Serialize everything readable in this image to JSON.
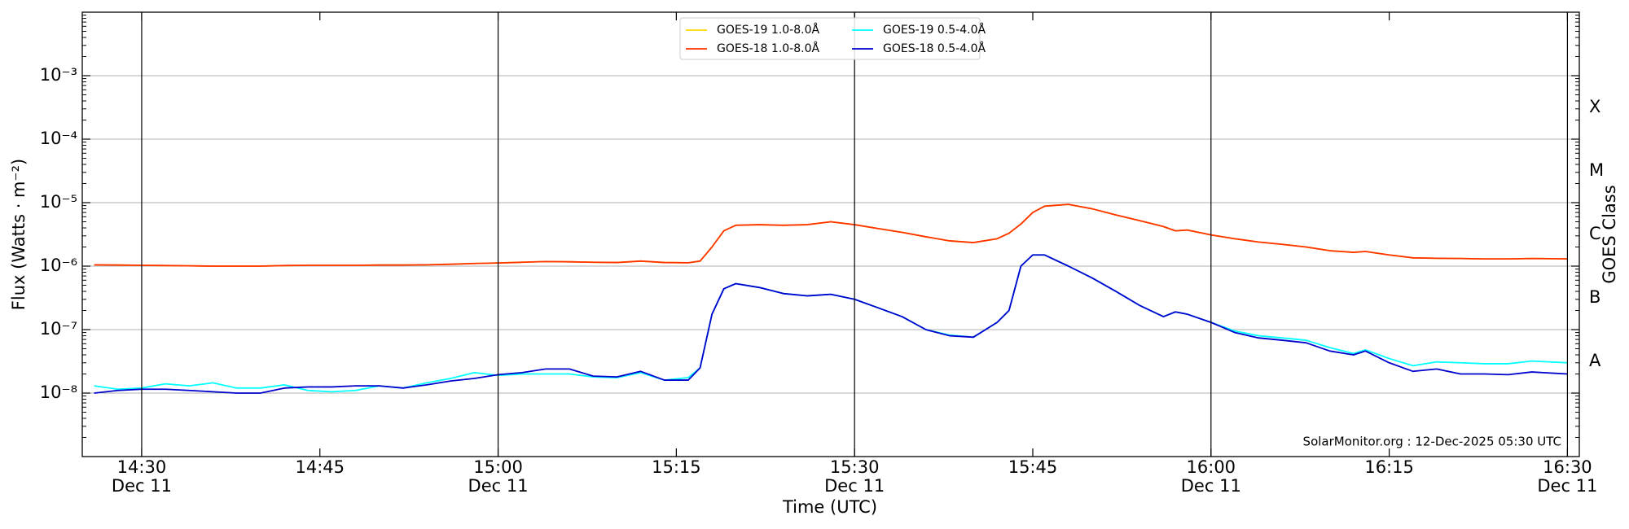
{
  "chart_data": {
    "type": "line",
    "ylabel": "Flux (Watts · m⁻²)",
    "xlabel": "Time (UTC)",
    "y2label": "GOES Class",
    "annotation": "SolarMonitor.org : 12-Dec-2025 05:30 UTC",
    "legend": "upper center",
    "grid": true,
    "ylog": true,
    "y2log": true,
    "xlim": [
      "14:25",
      "16:31"
    ],
    "ylim": [
      1e-09,
      0.01
    ],
    "y2lim": [
      1e-09,
      0.01
    ],
    "xticks": [
      {
        "value": "14:30",
        "label": [
          "14:30",
          "Dec 11"
        ]
      },
      "14:45",
      {
        "value": "15:00",
        "label": [
          "15:00",
          "Dec 11"
        ]
      },
      "15:15",
      {
        "value": "15:30",
        "label": [
          "15:30",
          "Dec 11"
        ]
      },
      "15:45",
      {
        "value": "16:00",
        "label": [
          "16:00",
          "Dec 11"
        ]
      },
      "16:15",
      {
        "value": "16:30",
        "label": [
          "16:30",
          "Dec 11"
        ]
      }
    ],
    "yticks": [
      {
        "value": 1e-08,
        "label": "10⁻⁸"
      },
      {
        "value": 1e-07,
        "label": "10⁻⁷"
      },
      {
        "value": 1e-06,
        "label": "10⁻⁶"
      },
      {
        "value": 1e-05,
        "label": "10⁻⁵"
      },
      {
        "value": 0.0001,
        "label": "10⁻⁴"
      },
      {
        "value": 0.001,
        "label": "10⁻³"
      }
    ],
    "y2ticks": [
      {
        "value": 3.16e-08,
        "label": "A"
      },
      {
        "value": 3.16e-07,
        "label": "B"
      },
      {
        "value": 3.16e-06,
        "label": "C"
      },
      {
        "value": 3.16e-05,
        "label": "M"
      },
      {
        "value": 0.000316,
        "label": "X"
      }
    ],
    "x": [
      "14:26",
      "14:28",
      "14:30",
      "14:32",
      "14:34",
      "14:36",
      "14:38",
      "14:40",
      "14:42",
      "14:44",
      "14:46",
      "14:48",
      "14:50",
      "14:52",
      "14:54",
      "14:56",
      "14:58",
      "15:00",
      "15:02",
      "15:04",
      "15:06",
      "15:08",
      "15:10",
      "15:12",
      "15:14",
      "15:16",
      "15:17",
      "15:18",
      "15:19",
      "15:20",
      "15:22",
      "15:24",
      "15:26",
      "15:28",
      "15:30",
      "15:32",
      "15:34",
      "15:36",
      "15:38",
      "15:40",
      "15:42",
      "15:43",
      "15:44",
      "15:45",
      "15:46",
      "15:48",
      "15:50",
      "15:52",
      "15:54",
      "15:56",
      "15:57",
      "15:58",
      "16:00",
      "16:02",
      "16:04",
      "16:06",
      "16:08",
      "16:10",
      "16:12",
      "16:13",
      "16:15",
      "16:17",
      "16:19",
      "16:21",
      "16:23",
      "16:25",
      "16:27",
      "16:30"
    ],
    "series": [
      {
        "name": "GOES-19 1.0-8.0Å",
        "color": "#ffd700",
        "values": [
          1.05e-06,
          1.04e-06,
          1.03e-06,
          1.02e-06,
          1.01e-06,
          1e-06,
          1e-06,
          1e-06,
          1.02e-06,
          1.03e-06,
          1.03e-06,
          1.03e-06,
          1.04e-06,
          1.04e-06,
          1.05e-06,
          1.07e-06,
          1.1e-06,
          1.12e-06,
          1.15e-06,
          1.18e-06,
          1.17e-06,
          1.15e-06,
          1.14e-06,
          1.2e-06,
          1.14e-06,
          1.13e-06,
          1.2e-06,
          2e-06,
          3.6e-06,
          4.4e-06,
          4.5e-06,
          4.4e-06,
          4.5e-06,
          5e-06,
          4.5e-06,
          3.9e-06,
          3.4e-06,
          2.9e-06,
          2.5e-06,
          2.35e-06,
          2.7e-06,
          3.3e-06,
          4.6e-06,
          7e-06,
          8.8e-06,
          9.4e-06,
          8e-06,
          6.4e-06,
          5.2e-06,
          4.2e-06,
          3.6e-06,
          3.7e-06,
          3.1e-06,
          2.7e-06,
          2.4e-06,
          2.2e-06,
          2e-06,
          1.75e-06,
          1.65e-06,
          1.7e-06,
          1.5e-06,
          1.35e-06,
          1.33e-06,
          1.32e-06,
          1.3e-06,
          1.3e-06,
          1.32e-06,
          1.3e-06
        ]
      },
      {
        "name": "GOES-18 1.0-8.0Å",
        "color": "#ff3300",
        "values": [
          1.05e-06,
          1.04e-06,
          1.03e-06,
          1.02e-06,
          1.01e-06,
          1e-06,
          1e-06,
          1e-06,
          1.02e-06,
          1.03e-06,
          1.03e-06,
          1.03e-06,
          1.04e-06,
          1.04e-06,
          1.05e-06,
          1.07e-06,
          1.1e-06,
          1.12e-06,
          1.15e-06,
          1.18e-06,
          1.17e-06,
          1.15e-06,
          1.14e-06,
          1.2e-06,
          1.14e-06,
          1.13e-06,
          1.2e-06,
          2e-06,
          3.6e-06,
          4.4e-06,
          4.5e-06,
          4.4e-06,
          4.5e-06,
          5e-06,
          4.5e-06,
          3.9e-06,
          3.4e-06,
          2.9e-06,
          2.5e-06,
          2.35e-06,
          2.7e-06,
          3.3e-06,
          4.6e-06,
          7e-06,
          8.8e-06,
          9.4e-06,
          8e-06,
          6.4e-06,
          5.2e-06,
          4.2e-06,
          3.6e-06,
          3.7e-06,
          3.1e-06,
          2.7e-06,
          2.4e-06,
          2.2e-06,
          2e-06,
          1.75e-06,
          1.65e-06,
          1.7e-06,
          1.5e-06,
          1.35e-06,
          1.33e-06,
          1.32e-06,
          1.3e-06,
          1.3e-06,
          1.32e-06,
          1.3e-06
        ]
      },
      {
        "name": "GOES-19 0.5-4.0Å",
        "color": "#00ffff",
        "values": [
          1.3e-08,
          1.15e-08,
          1.2e-08,
          1.4e-08,
          1.3e-08,
          1.45e-08,
          1.2e-08,
          1.2e-08,
          1.35e-08,
          1.1e-08,
          1.05e-08,
          1.1e-08,
          1.3e-08,
          1.2e-08,
          1.45e-08,
          1.7e-08,
          2.1e-08,
          1.9e-08,
          2e-08,
          2e-08,
          2e-08,
          1.8e-08,
          1.75e-08,
          2.1e-08,
          1.6e-08,
          1.75e-08,
          2.5e-08,
          1.75e-07,
          4.4e-07,
          5.3e-07,
          4.6e-07,
          3.7e-07,
          3.4e-07,
          3.6e-07,
          3e-07,
          2.2e-07,
          1.6e-07,
          1e-07,
          8.2e-08,
          7.6e-08,
          1.3e-07,
          2e-07,
          1e-06,
          1.5e-06,
          1.5e-06,
          1e-06,
          6.5e-07,
          4e-07,
          2.4e-07,
          1.6e-07,
          1.9e-07,
          1.75e-07,
          1.3e-07,
          9.5e-08,
          8e-08,
          7.4e-08,
          6.8e-08,
          5.2e-08,
          4.2e-08,
          4.8e-08,
          3.5e-08,
          2.7e-08,
          3.1e-08,
          3e-08,
          2.9e-08,
          2.9e-08,
          3.2e-08,
          3e-08
        ]
      },
      {
        "name": "GOES-18 0.5-4.0Å",
        "color": "#0000cd",
        "values": [
          1e-08,
          1.1e-08,
          1.15e-08,
          1.15e-08,
          1.1e-08,
          1.05e-08,
          1e-08,
          1e-08,
          1.2e-08,
          1.25e-08,
          1.25e-08,
          1.3e-08,
          1.3e-08,
          1.2e-08,
          1.35e-08,
          1.55e-08,
          1.7e-08,
          1.95e-08,
          2.1e-08,
          2.4e-08,
          2.4e-08,
          1.85e-08,
          1.8e-08,
          2.2e-08,
          1.6e-08,
          1.6e-08,
          2.5e-08,
          1.75e-07,
          4.4e-07,
          5.3e-07,
          4.6e-07,
          3.7e-07,
          3.4e-07,
          3.6e-07,
          3e-07,
          2.2e-07,
          1.6e-07,
          1e-07,
          8e-08,
          7.6e-08,
          1.3e-07,
          2e-07,
          1e-06,
          1.5e-06,
          1.5e-06,
          1e-06,
          6.5e-07,
          4e-07,
          2.4e-07,
          1.6e-07,
          1.9e-07,
          1.75e-07,
          1.3e-07,
          9e-08,
          7.4e-08,
          6.8e-08,
          6.2e-08,
          4.6e-08,
          4e-08,
          4.6e-08,
          3e-08,
          2.2e-08,
          2.4e-08,
          2e-08,
          2e-08,
          1.95e-08,
          2.15e-08,
          2e-08
        ]
      }
    ]
  }
}
